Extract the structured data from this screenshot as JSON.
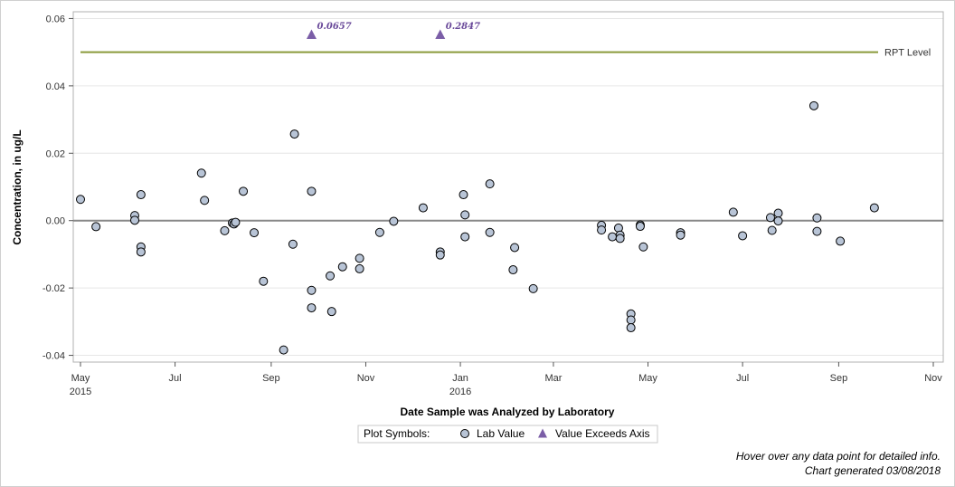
{
  "chart_data": {
    "type": "scatter",
    "title": "",
    "xlabel": "Date Sample was Analyzed by Laboratory",
    "ylabel": "Concentration, in ug/L",
    "xlim": [
      "2015-05-01",
      "2016-11-01"
    ],
    "ylim": [
      -0.042,
      0.062
    ],
    "x_ticks": [
      {
        "date": "2015-05-01",
        "label": "May",
        "year": "2015"
      },
      {
        "date": "2015-07-01",
        "label": "Jul",
        "year": ""
      },
      {
        "date": "2015-09-01",
        "label": "Sep",
        "year": ""
      },
      {
        "date": "2015-11-01",
        "label": "Nov",
        "year": ""
      },
      {
        "date": "2016-01-01",
        "label": "Jan",
        "year": "2016"
      },
      {
        "date": "2016-03-01",
        "label": "Mar",
        "year": ""
      },
      {
        "date": "2016-05-01",
        "label": "May",
        "year": ""
      },
      {
        "date": "2016-07-01",
        "label": "Jul",
        "year": ""
      },
      {
        "date": "2016-09-01",
        "label": "Sep",
        "year": ""
      },
      {
        "date": "2016-11-01",
        "label": "Nov",
        "year": ""
      }
    ],
    "y_ticks": [
      {
        "value": -0.04,
        "label": "-0.04"
      },
      {
        "value": -0.02,
        "label": "-0.02"
      },
      {
        "value": 0.0,
        "label": "0.00"
      },
      {
        "value": 0.02,
        "label": "0.02"
      },
      {
        "value": 0.04,
        "label": "0.04"
      },
      {
        "value": 0.06,
        "label": "0.06"
      }
    ],
    "grid": true,
    "zero_line": 0,
    "reference_line": {
      "label": "RPT Level",
      "value": 0.05,
      "color": "#8a9a3a"
    },
    "lab_values": [
      {
        "x": "2015-05-01",
        "y": 0.0063
      },
      {
        "x": "2015-05-11",
        "y": -0.0018
      },
      {
        "x": "2015-06-05",
        "y": 0.0015
      },
      {
        "x": "2015-06-05",
        "y": 0.0001
      },
      {
        "x": "2015-06-09",
        "y": 0.0077
      },
      {
        "x": "2015-06-09",
        "y": -0.0078
      },
      {
        "x": "2015-06-09",
        "y": -0.0093
      },
      {
        "x": "2015-07-18",
        "y": 0.0141
      },
      {
        "x": "2015-07-20",
        "y": 0.006
      },
      {
        "x": "2015-08-02",
        "y": -0.003
      },
      {
        "x": "2015-08-07",
        "y": -0.0007
      },
      {
        "x": "2015-08-08",
        "y": -0.001
      },
      {
        "x": "2015-08-09",
        "y": -0.0005
      },
      {
        "x": "2015-08-14",
        "y": 0.0087
      },
      {
        "x": "2015-08-21",
        "y": -0.0036
      },
      {
        "x": "2015-08-27",
        "y": -0.018
      },
      {
        "x": "2015-09-09",
        "y": -0.0384
      },
      {
        "x": "2015-09-15",
        "y": -0.007
      },
      {
        "x": "2015-09-16",
        "y": 0.0257
      },
      {
        "x": "2015-09-27",
        "y": 0.0087
      },
      {
        "x": "2015-09-27",
        "y": -0.0207
      },
      {
        "x": "2015-09-27",
        "y": -0.0259
      },
      {
        "x": "2015-10-09",
        "y": -0.0164
      },
      {
        "x": "2015-10-10",
        "y": -0.027
      },
      {
        "x": "2015-10-17",
        "y": -0.0137
      },
      {
        "x": "2015-10-28",
        "y": -0.0112
      },
      {
        "x": "2015-10-28",
        "y": -0.0143
      },
      {
        "x": "2015-11-10",
        "y": -0.0035
      },
      {
        "x": "2015-11-19",
        "y": -0.0002
      },
      {
        "x": "2015-12-08",
        "y": 0.0038
      },
      {
        "x": "2015-12-19",
        "y": -0.0093
      },
      {
        "x": "2015-12-19",
        "y": -0.0102
      },
      {
        "x": "2016-01-03",
        "y": 0.0077
      },
      {
        "x": "2016-01-04",
        "y": 0.0017
      },
      {
        "x": "2016-01-04",
        "y": -0.0048
      },
      {
        "x": "2016-01-20",
        "y": 0.0109
      },
      {
        "x": "2016-01-20",
        "y": -0.0035
      },
      {
        "x": "2016-02-04",
        "y": -0.0146
      },
      {
        "x": "2016-02-05",
        "y": -0.008
      },
      {
        "x": "2016-02-17",
        "y": -0.0202
      },
      {
        "x": "2016-04-01",
        "y": -0.0014
      },
      {
        "x": "2016-04-01",
        "y": -0.0028
      },
      {
        "x": "2016-04-08",
        "y": -0.0048
      },
      {
        "x": "2016-04-12",
        "y": -0.0022
      },
      {
        "x": "2016-04-13",
        "y": -0.0043
      },
      {
        "x": "2016-04-13",
        "y": -0.0053
      },
      {
        "x": "2016-04-20",
        "y": -0.0277
      },
      {
        "x": "2016-04-20",
        "y": -0.0295
      },
      {
        "x": "2016-04-20",
        "y": -0.0318
      },
      {
        "x": "2016-04-26",
        "y": -0.0013
      },
      {
        "x": "2016-04-26",
        "y": -0.0017
      },
      {
        "x": "2016-04-28",
        "y": -0.0078
      },
      {
        "x": "2016-05-22",
        "y": -0.0036
      },
      {
        "x": "2016-05-22",
        "y": -0.0043
      },
      {
        "x": "2016-06-25",
        "y": 0.0025
      },
      {
        "x": "2016-07-01",
        "y": -0.0045
      },
      {
        "x": "2016-07-19",
        "y": 0.0009
      },
      {
        "x": "2016-07-20",
        "y": -0.0029
      },
      {
        "x": "2016-07-24",
        "y": 0.0022
      },
      {
        "x": "2016-07-24",
        "y": -0.0001
      },
      {
        "x": "2016-08-16",
        "y": 0.0341
      },
      {
        "x": "2016-08-18",
        "y": 0.0008
      },
      {
        "x": "2016-08-18",
        "y": -0.0032
      },
      {
        "x": "2016-09-02",
        "y": -0.0061
      },
      {
        "x": "2016-09-24",
        "y": 0.0038
      }
    ],
    "exceeds_axis": [
      {
        "x": "2015-09-27",
        "label": "0.0657"
      },
      {
        "x": "2015-12-19",
        "label": "0.2847"
      }
    ],
    "colors": {
      "marker_fill": "#b8c4d6",
      "marker_stroke": "#000000",
      "exceed": "#7b5ea7",
      "exceed_label": "#6a4a9a",
      "zero_line": "#888888",
      "grid": "#e6e6e6"
    },
    "legend": {
      "placement": "bottom",
      "title": "Plot Symbols:",
      "items": [
        {
          "symbol": "circle",
          "label": "Lab Value"
        },
        {
          "symbol": "triangle",
          "label": "Value Exceeds Axis"
        }
      ]
    }
  },
  "footnotes": {
    "hover_hint": "Hover over any data point for detailed info.",
    "generated": "Chart generated 03/08/2018"
  }
}
